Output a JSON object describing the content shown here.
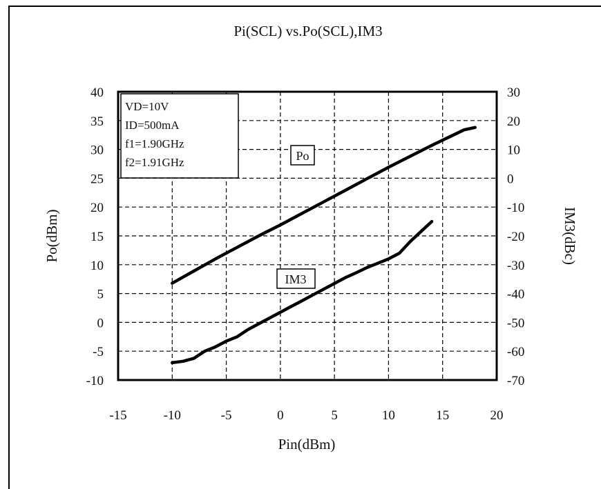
{
  "chart_data": {
    "type": "line",
    "title": "Pi(SCL) vs.Po(SCL),IM3",
    "xlabel": "Pin(dBm)",
    "ylabel": "Po(dBm)",
    "y2label": "IM3(dBc)",
    "xlim": [
      -15,
      20
    ],
    "ylim": [
      -10,
      40
    ],
    "y2lim": [
      -70,
      30
    ],
    "xticks": [
      "-15",
      "-10",
      "-5",
      "0",
      "5",
      "10",
      "15",
      "20"
    ],
    "yticks": [
      "-10",
      "-5",
      "0",
      "5",
      "10",
      "15",
      "20",
      "25",
      "30",
      "35",
      "40"
    ],
    "y2ticks": [
      "-70",
      "-60",
      "-50",
      "-40",
      "-30",
      "-20",
      "-10",
      "0",
      "10",
      "20",
      "30"
    ],
    "grid": true,
    "legend_box": [
      "VD=10V",
      "ID=500mA",
      "f1=1.90GHz",
      "f2=1.91GHz"
    ],
    "series": [
      {
        "name": "Po",
        "axis": "left",
        "x": [
          -10,
          -8,
          -6,
          -4,
          -2,
          0,
          2,
          4,
          6,
          8,
          10,
          12,
          14,
          16,
          17,
          18
        ],
        "y": [
          6.8,
          8.9,
          11.0,
          13.0,
          15.0,
          16.9,
          18.9,
          20.9,
          22.9,
          24.9,
          26.9,
          28.8,
          30.7,
          32.5,
          33.4,
          33.8
        ]
      },
      {
        "name": "IM3",
        "axis": "right",
        "x": [
          -10,
          -9,
          -8,
          -7,
          -6,
          -5,
          -4,
          -3,
          -2,
          -1,
          0,
          1,
          2,
          3,
          4,
          5,
          6,
          7,
          8,
          9,
          10,
          11,
          12,
          13,
          14
        ],
        "y": [
          -64.0,
          -63.5,
          -62.5,
          -60.0,
          -58.5,
          -56.5,
          -55.0,
          -52.5,
          -50.5,
          -48.5,
          -46.5,
          -44.5,
          -42.5,
          -40.5,
          -38.5,
          -36.5,
          -34.5,
          -32.8,
          -31.0,
          -29.5,
          -28.0,
          -26.0,
          -22.0,
          -18.5,
          -15.0
        ]
      }
    ],
    "annotations": [
      "Po",
      "IM3"
    ]
  }
}
